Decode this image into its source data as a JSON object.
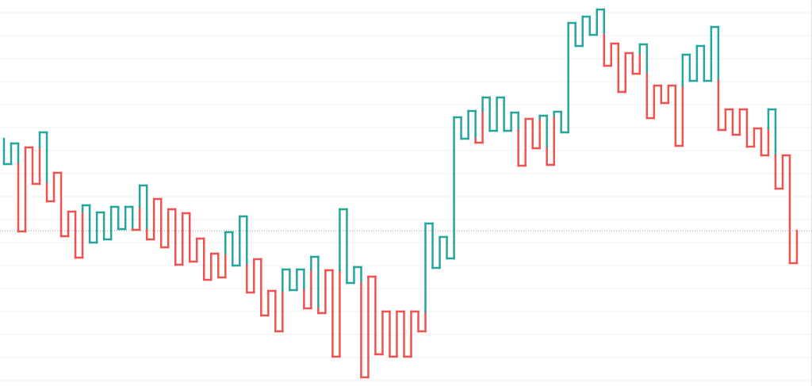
{
  "chart_data": {
    "type": "kagi",
    "values": [
      312,
      280,
      306,
      195,
      301,
      255,
      320,
      233,
      269,
      189,
      220,
      162,
      228,
      181,
      219,
      185,
      226,
      198,
      226,
      197,
      253,
      185,
      236,
      175,
      223,
      153,
      218,
      157,
      186,
      134,
      167,
      137,
      194,
      152,
      214,
      118,
      160,
      89,
      120,
      69,
      147,
      121,
      147,
      98,
      163,
      92,
      146,
      37,
      223,
      130,
      150,
      11,
      138,
      40,
      94,
      37,
      94,
      37,
      94,
      69,
      205,
      149,
      188,
      161,
      339,
      312,
      347,
      307,
      364,
      322,
      364,
      322,
      345,
      278,
      337,
      300,
      341,
      279,
      346,
      320,
      458,
      429,
      466,
      443,
      475,
      404,
      432,
      371,
      420,
      394,
      431,
      338,
      379,
      357,
      379,
      303,
      418,
      385,
      429,
      385,
      453,
      323,
      349,
      317,
      349,
      302,
      325,
      291,
      349,
      249,
      291,
      155,
      196
    ],
    "up_color": "#26a69a",
    "down_color": "#ef5350",
    "ylim": [
      0,
      487
    ],
    "yticks": [
      471,
      442,
      413,
      384,
      355,
      326,
      297,
      268,
      239,
      210,
      181,
      152,
      123,
      94,
      65,
      36,
      7
    ],
    "grid": true,
    "last_value_line": true
  }
}
